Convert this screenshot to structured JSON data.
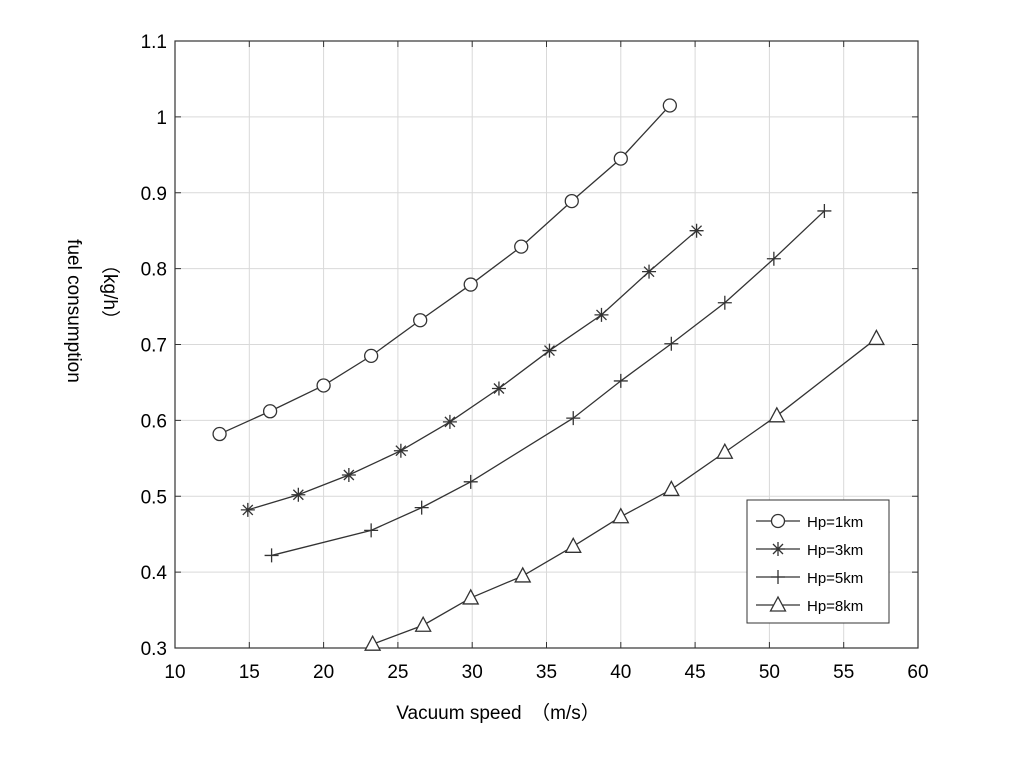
{
  "chart_data": {
    "type": "line",
    "title": "",
    "xlabel": "Vacuum speed　（m/s）",
    "ylabel_line1": "fuel consumption",
    "ylabel_line2": "（kg/h）",
    "xlim": [
      10,
      60
    ],
    "ylim": [
      0.3,
      1.1
    ],
    "xticks": [
      10,
      15,
      20,
      25,
      30,
      35,
      40,
      45,
      50,
      55,
      60
    ],
    "yticks": [
      0.3,
      0.4,
      0.5,
      0.6,
      0.7,
      0.8,
      0.9,
      1,
      1.1
    ],
    "ytick_labels": [
      "0.3",
      "0.4",
      "0.5",
      "0.6",
      "0.7",
      "0.8",
      "0.9",
      "1",
      "1.1"
    ],
    "grid": true,
    "legend_position": "bottom-right",
    "series": [
      {
        "name": "Hp=1km",
        "marker": "circle",
        "x": [
          13.0,
          16.4,
          20.0,
          23.2,
          26.5,
          29.9,
          33.3,
          36.7,
          40.0,
          43.3
        ],
        "y": [
          0.582,
          0.612,
          0.646,
          0.685,
          0.732,
          0.779,
          0.829,
          0.889,
          0.945,
          1.015
        ]
      },
      {
        "name": "Hp=3km",
        "marker": "asterisk",
        "x": [
          14.9,
          18.3,
          21.7,
          25.2,
          28.5,
          31.8,
          35.2,
          38.7,
          41.9,
          45.1
        ],
        "y": [
          0.482,
          0.502,
          0.528,
          0.56,
          0.598,
          0.642,
          0.692,
          0.739,
          0.796,
          0.85
        ]
      },
      {
        "name": "Hp=5km",
        "marker": "plus",
        "x": [
          16.5,
          23.2,
          26.6,
          29.9,
          36.8,
          40.0,
          43.4,
          47.0,
          50.3,
          53.7
        ],
        "y": [
          0.422,
          0.455,
          0.485,
          0.519,
          0.603,
          0.652,
          0.701,
          0.755,
          0.813,
          0.876
        ]
      },
      {
        "name": "Hp=8km",
        "marker": "triangle",
        "x": [
          23.3,
          26.7,
          29.9,
          33.4,
          36.8,
          40.0,
          43.4,
          47.0,
          50.5,
          57.2
        ],
        "y": [
          0.305,
          0.33,
          0.366,
          0.395,
          0.434,
          0.473,
          0.509,
          0.558,
          0.606,
          0.708
        ]
      }
    ]
  }
}
